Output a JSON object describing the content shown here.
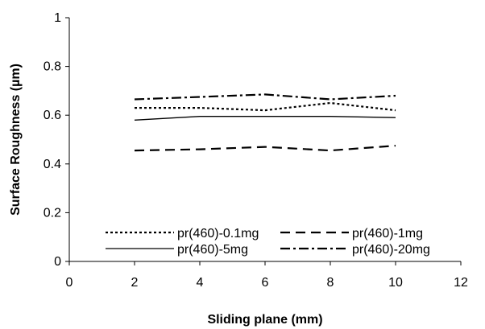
{
  "chart_data": {
    "type": "line",
    "xlabel": "Sliding plane (mm)",
    "ylabel": "Surface Roughness (µm)",
    "xlim": [
      0,
      12
    ],
    "ylim": [
      0,
      1
    ],
    "xticks": [
      "0",
      "2",
      "4",
      "6",
      "8",
      "10",
      "12"
    ],
    "yticks": [
      "0",
      "0.2",
      "0.4",
      "0.6",
      "0.8",
      "1"
    ],
    "grid": false,
    "legend_position": "bottom-inside",
    "x": [
      2,
      4,
      6,
      8,
      10
    ],
    "series": [
      {
        "name": "pr(460)-0.1mg",
        "style": "dotted",
        "color": "#000000",
        "values": [
          0.63,
          0.63,
          0.62,
          0.65,
          0.62
        ]
      },
      {
        "name": "pr(460)-1mg",
        "style": "dashed",
        "color": "#000000",
        "values": [
          0.455,
          0.46,
          0.47,
          0.455,
          0.475
        ]
      },
      {
        "name": "pr(460)-5mg",
        "style": "solid",
        "color": "#000000",
        "values": [
          0.58,
          0.595,
          0.595,
          0.595,
          0.59
        ]
      },
      {
        "name": "pr(460)-20mg",
        "style": "dashdot",
        "color": "#000000",
        "values": [
          0.665,
          0.675,
          0.685,
          0.665,
          0.68
        ]
      }
    ]
  }
}
